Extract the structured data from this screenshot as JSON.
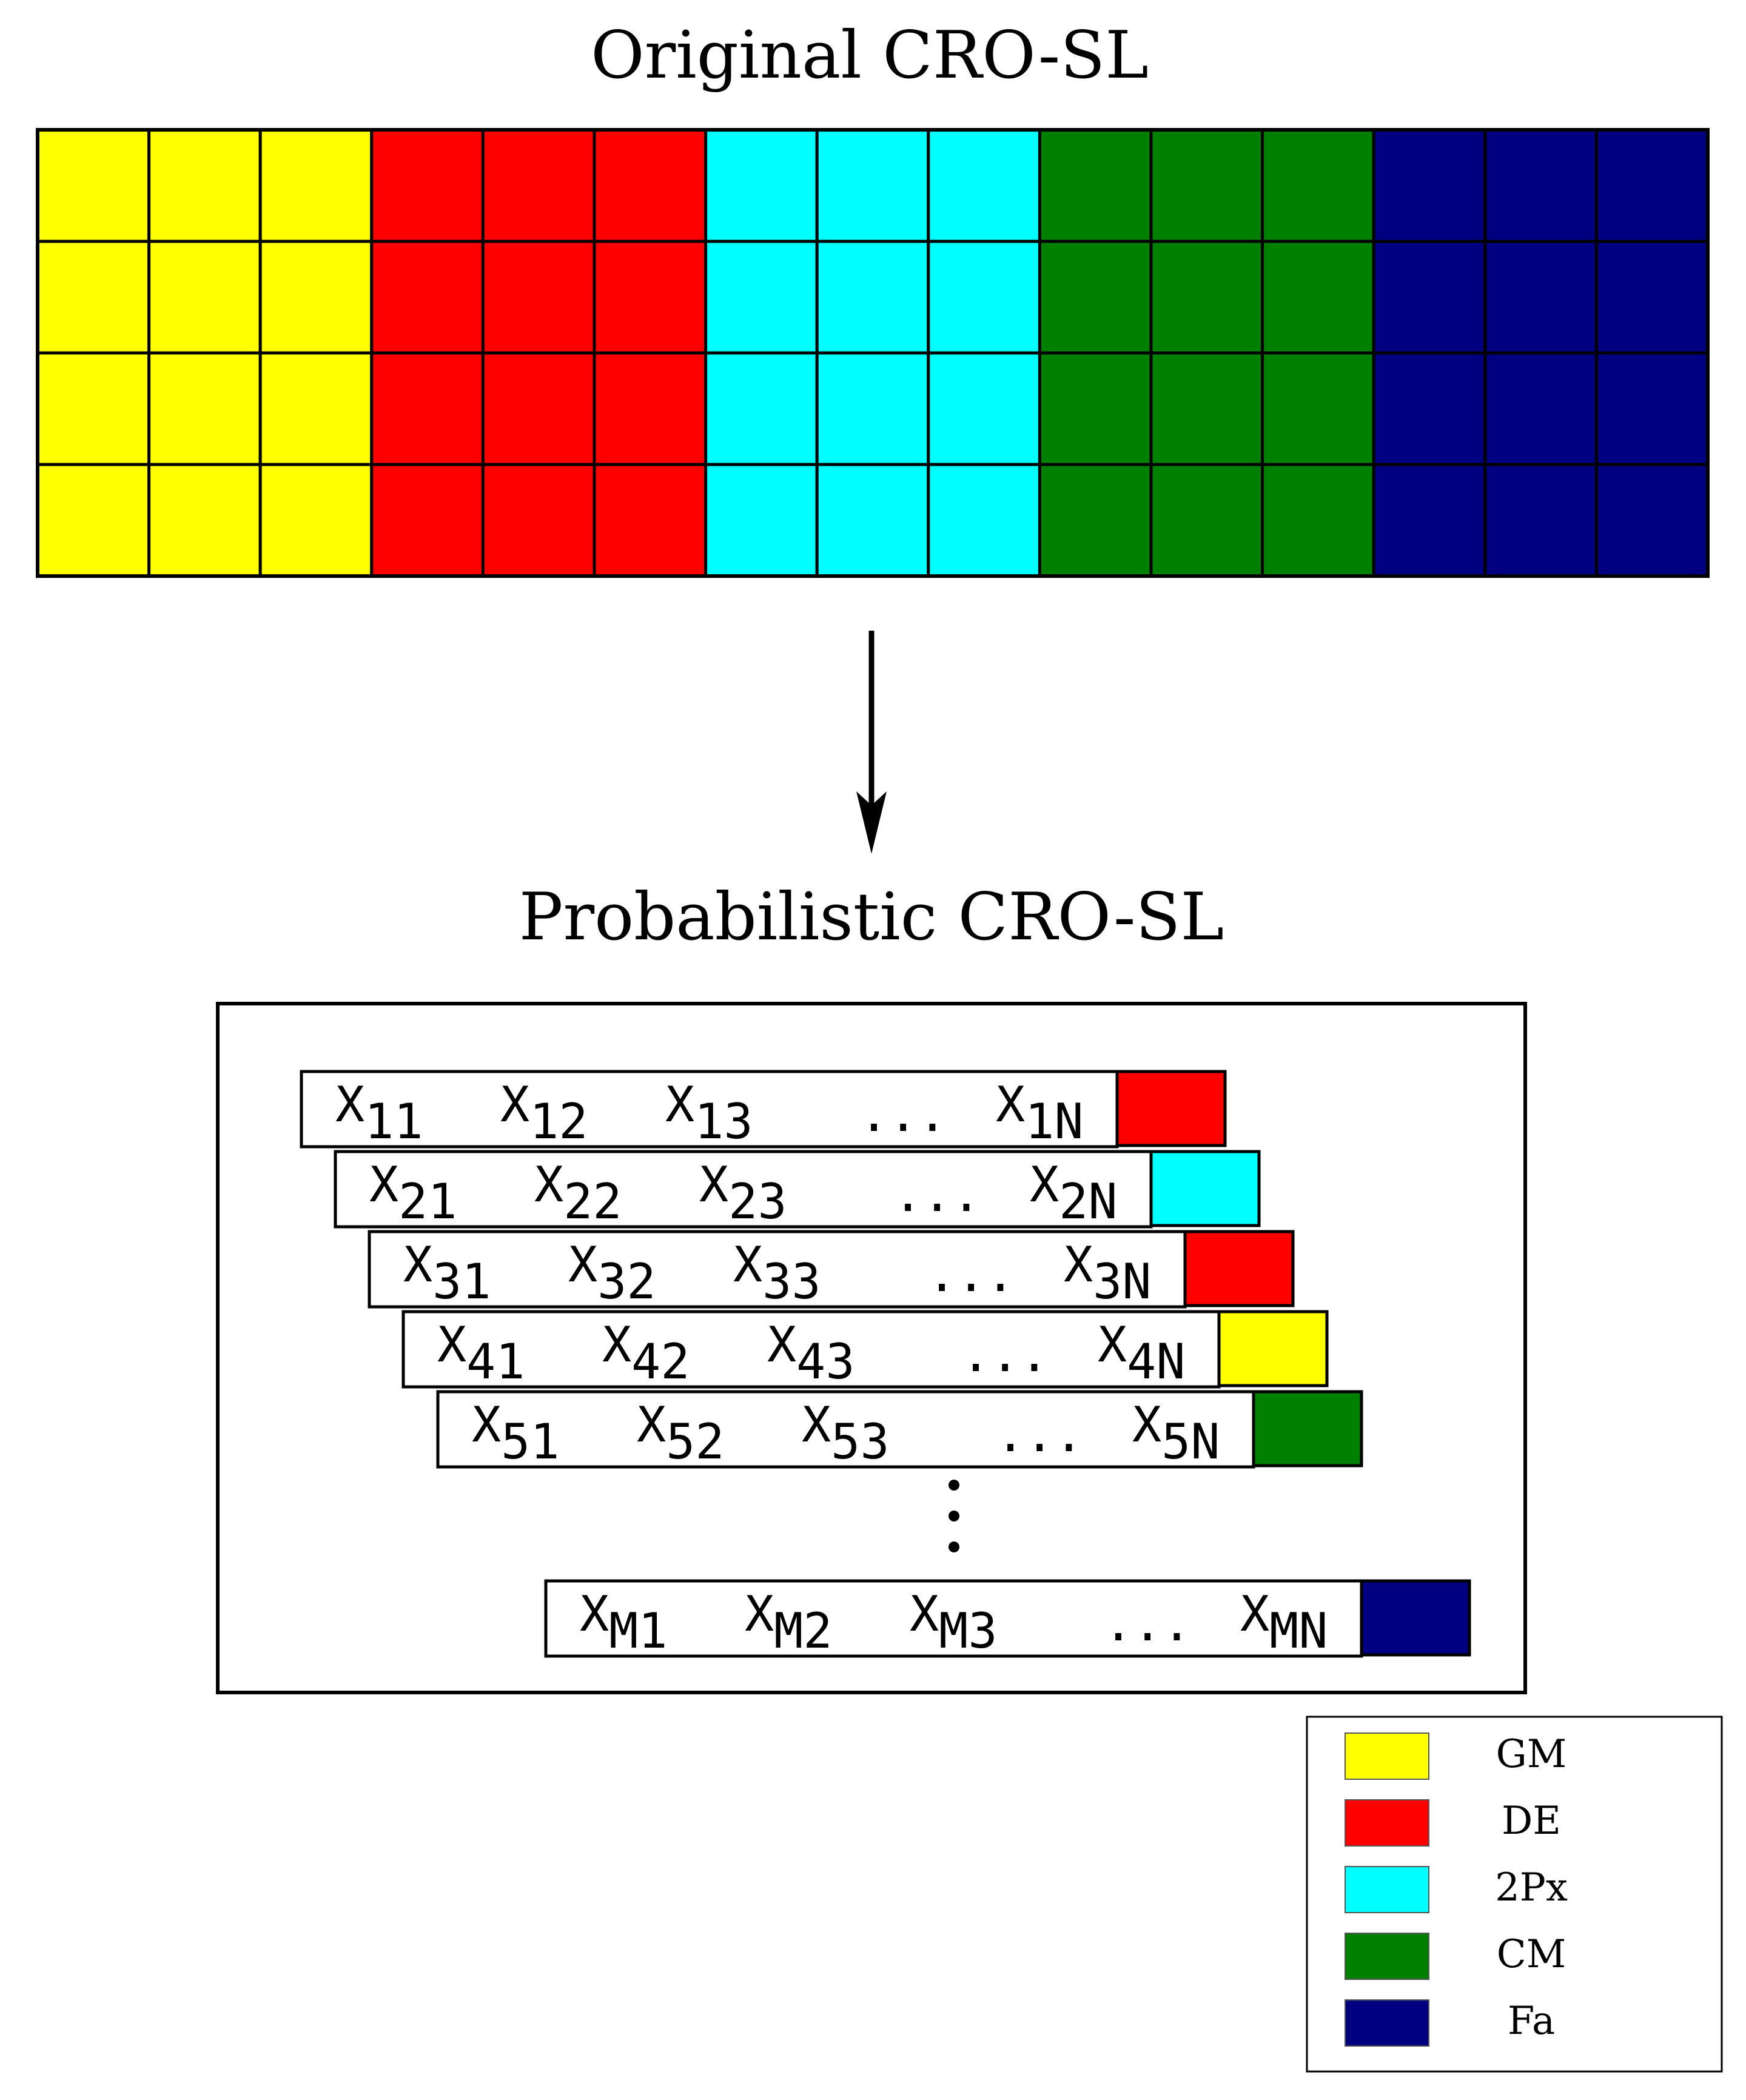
{
  "original": {
    "title": "Original CRO-SL",
    "rows": 4,
    "blocks": [
      {
        "name": "GM",
        "color": "#ffff00",
        "columns": 3
      },
      {
        "name": "DE",
        "color": "#ff0000",
        "columns": 3
      },
      {
        "name": "2Px",
        "color": "#00ffff",
        "columns": 3
      },
      {
        "name": "CM",
        "color": "#008000",
        "columns": 3
      },
      {
        "name": "Fa",
        "color": "#000080",
        "columns": 3
      }
    ]
  },
  "probabilistic": {
    "title": "Probabilistic CRO-SL",
    "ellipsis": "...",
    "rows": [
      {
        "index": "1",
        "cells": [
          "11",
          "12",
          "13"
        ],
        "last": "1N",
        "substrate_color": "#ff0000"
      },
      {
        "index": "2",
        "cells": [
          "21",
          "22",
          "23"
        ],
        "last": "2N",
        "substrate_color": "#00ffff"
      },
      {
        "index": "3",
        "cells": [
          "31",
          "32",
          "33"
        ],
        "last": "3N",
        "substrate_color": "#ff0000"
      },
      {
        "index": "4",
        "cells": [
          "41",
          "42",
          "43"
        ],
        "last": "4N",
        "substrate_color": "#ffff00"
      },
      {
        "index": "5",
        "cells": [
          "51",
          "52",
          "53"
        ],
        "last": "5N",
        "substrate_color": "#008000"
      },
      {
        "index": "M",
        "cells": [
          "M1",
          "M2",
          "M3"
        ],
        "last": "MN",
        "substrate_color": "#000080"
      }
    ],
    "variable_letter": "X"
  },
  "legend": [
    {
      "label": "GM",
      "color": "#ffff00"
    },
    {
      "label": "DE",
      "color": "#ff0000"
    },
    {
      "label": "2Px",
      "color": "#00ffff"
    },
    {
      "label": "CM",
      "color": "#008000"
    },
    {
      "label": "Fa",
      "color": "#000080"
    }
  ]
}
